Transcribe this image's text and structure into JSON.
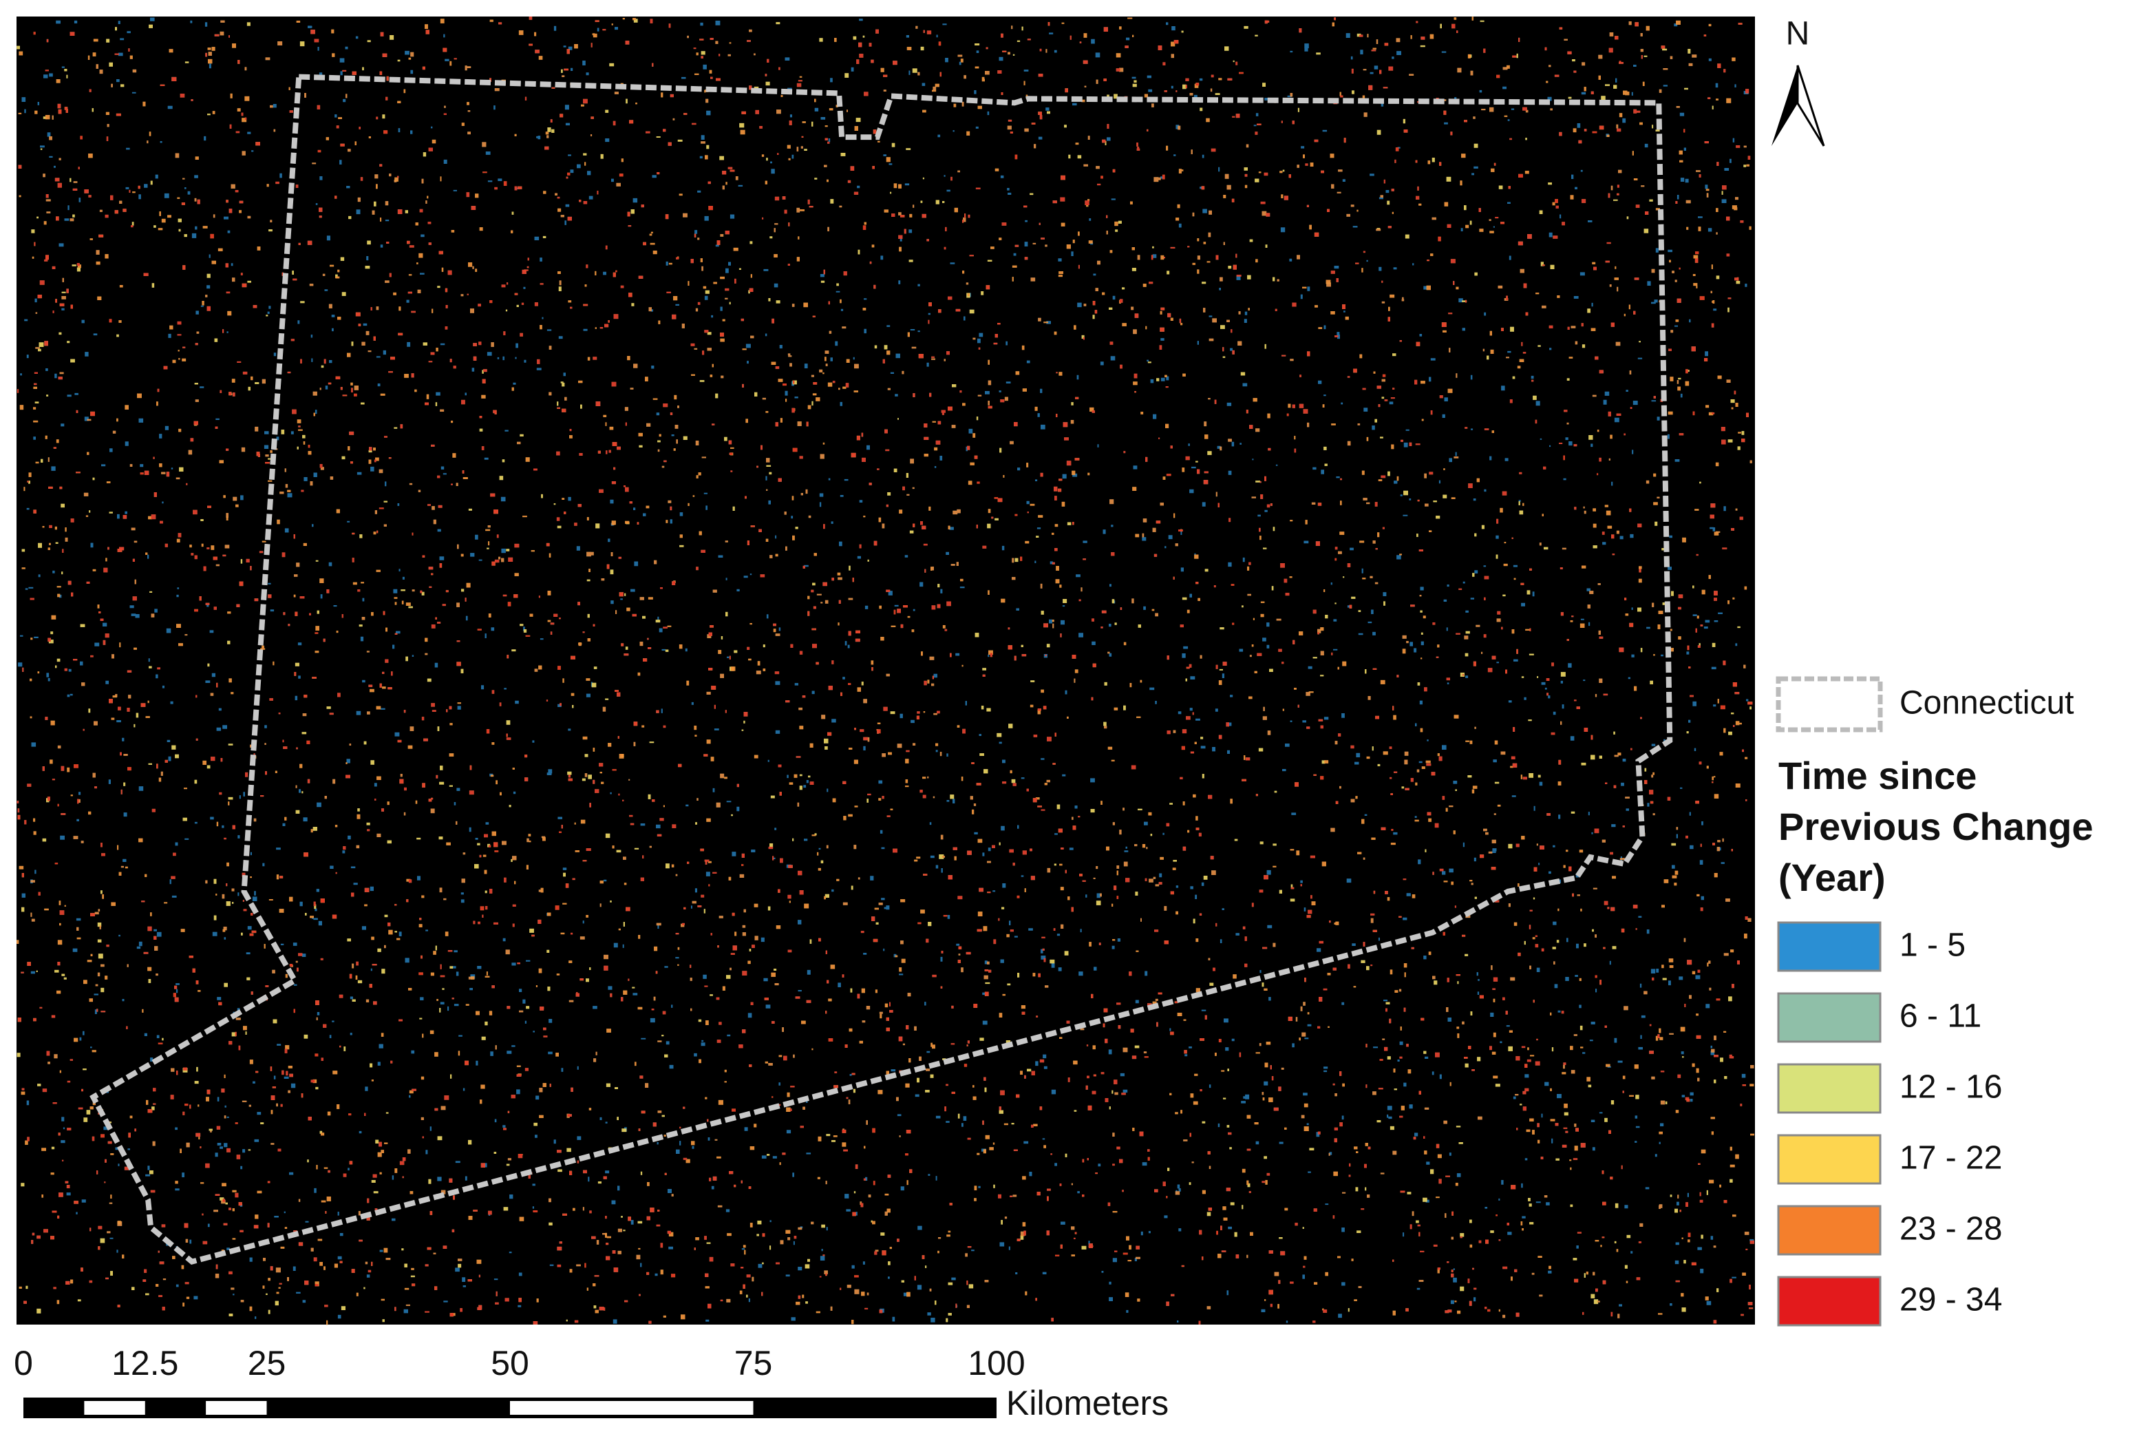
{
  "north_arrow": "N",
  "boundary_label": "Connecticut",
  "legend": {
    "title": "Time since Previous Change (Year)",
    "classes": [
      {
        "label": "1 - 5",
        "color": "#2b8fd3"
      },
      {
        "label": "6 - 11",
        "color": "#8fbfa8"
      },
      {
        "label": "12 - 16",
        "color": "#d9e27a"
      },
      {
        "label": "17 - 22",
        "color": "#fdd54f"
      },
      {
        "label": "23 - 28",
        "color": "#f47f2c"
      },
      {
        "label": "29 - 34",
        "color": "#e31a1c"
      }
    ]
  },
  "scale_bar": {
    "ticks": [
      0,
      12.5,
      25,
      50,
      75,
      100
    ],
    "unit": "Kilometers"
  }
}
